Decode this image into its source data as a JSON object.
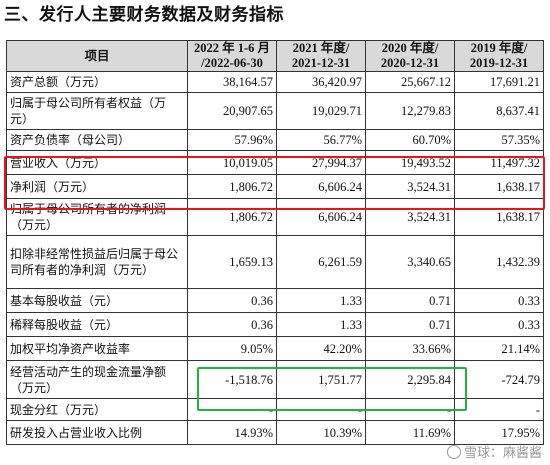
{
  "section_title": "三、发行人主要财务数据及财务指标",
  "table": {
    "headers": [
      {
        "l1": "项目",
        "l2": ""
      },
      {
        "l1": "2022 年 1-6 月",
        "l2": "/2022-06-30"
      },
      {
        "l1": "2021 年度/",
        "l2": "2021-12-31"
      },
      {
        "l1": "2020 年度/",
        "l2": "2020-12-31"
      },
      {
        "l1": "2019 年度/",
        "l2": "2019-12-31"
      }
    ],
    "rows": [
      {
        "label": "资产总额（万元）",
        "values": [
          "38,164.57",
          "36,420.97",
          "25,667.12",
          "17,691.21"
        ]
      },
      {
        "label": "归属于母公司所有者权益（万元）",
        "values": [
          "20,907.65",
          "19,029.71",
          "12,279.83",
          "8,637.41"
        ]
      },
      {
        "label": "资产负债率（母公司）",
        "values": [
          "57.96%",
          "56.77%",
          "60.70%",
          "57.35%"
        ]
      },
      {
        "label": "营业收入（万元）",
        "values": [
          "10,019.05",
          "27,994.37",
          "19,493.52",
          "11,497.32"
        ]
      },
      {
        "label": "净利润（万元）",
        "values": [
          "1,806.72",
          "6,606.24",
          "3,524.31",
          "1,638.17"
        ]
      },
      {
        "label": "归属于母公司所有者的净利润（万元）",
        "values": [
          "1,806.72",
          "6,606.24",
          "3,524.31",
          "1,638.17"
        ]
      },
      {
        "label": "扣除非经常性损益后归属于母公司所有者的净利润（万元）",
        "values": [
          "1,659.13",
          "6,261.59",
          "3,340.65",
          "1,432.39"
        ]
      },
      {
        "label": "基本每股收益（元）",
        "values": [
          "0.36",
          "1.33",
          "0.71",
          "0.33"
        ]
      },
      {
        "label": "稀释每股收益（元）",
        "values": [
          "0.36",
          "1.33",
          "0.71",
          "0.33"
        ]
      },
      {
        "label": "加权平均净资产收益率",
        "values": [
          "9.05%",
          "42.20%",
          "33.66%",
          "21.14%"
        ]
      },
      {
        "label": "经营活动产生的现金流量净额（万元）",
        "values": [
          "-1,518.76",
          "1,751.77",
          "2,295.84",
          "-724.79"
        ]
      },
      {
        "label": "现金分红（万元）",
        "values": [
          "-",
          "-",
          "-",
          "-"
        ]
      },
      {
        "label": "研发投入占营业收入比例",
        "values": [
          "14.93%",
          "10.39%",
          "11.69%",
          "17.95%"
        ]
      }
    ]
  },
  "highlights": {
    "red_color": "#e8141b",
    "green_color": "#22b43c"
  },
  "watermark": {
    "text": "雪球：麻酱酱",
    "icon": "snowball-logo-icon"
  }
}
